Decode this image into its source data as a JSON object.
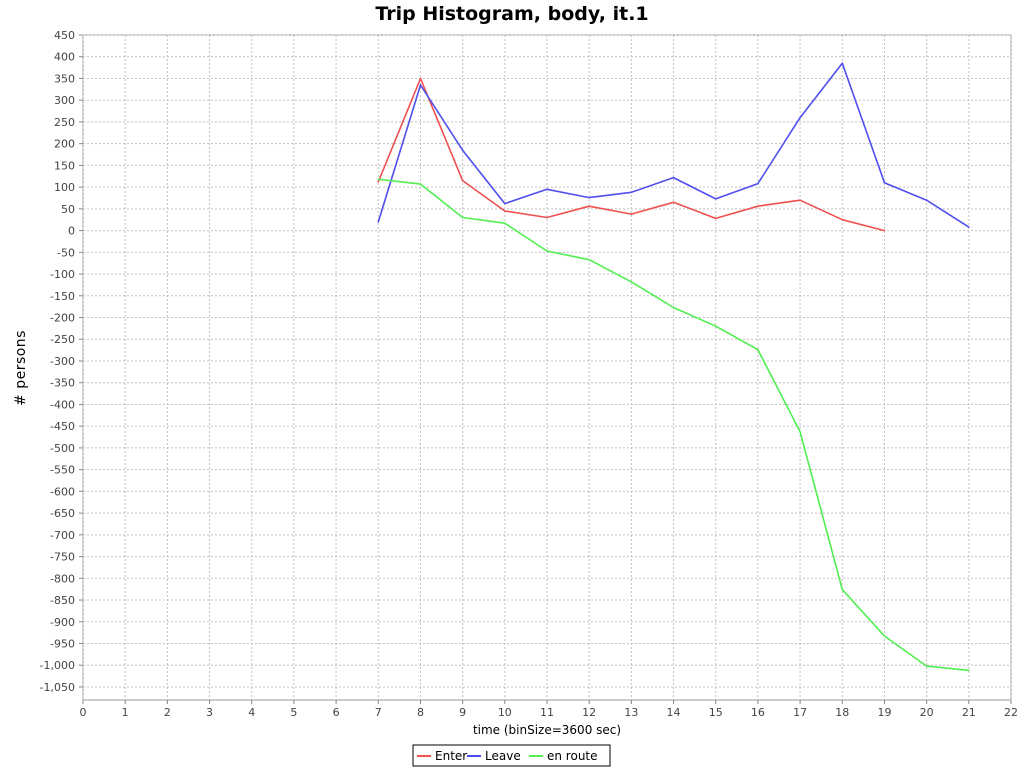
{
  "chart_data": {
    "type": "line",
    "title": "Trip Histogram, body, it.1",
    "xlabel": "time (binSize=3600 sec)",
    "ylabel": "# persons",
    "xlim": [
      0,
      22
    ],
    "ylim": [
      -1080,
      450
    ],
    "xticks": [
      0,
      1,
      2,
      3,
      4,
      5,
      6,
      7,
      8,
      9,
      10,
      11,
      12,
      13,
      14,
      15,
      16,
      17,
      18,
      19,
      20,
      21,
      22
    ],
    "yticks": [
      450,
      400,
      350,
      300,
      250,
      200,
      150,
      100,
      50,
      0,
      -50,
      -100,
      -150,
      -200,
      -250,
      -300,
      -350,
      -400,
      -450,
      -500,
      -550,
      -600,
      -650,
      -700,
      -750,
      -800,
      -850,
      -900,
      -950,
      -1000,
      -1050
    ],
    "ytick_labels": [
      "450",
      "400",
      "350",
      "300",
      "250",
      "200",
      "150",
      "100",
      "50",
      "0",
      "-50",
      "-100",
      "-150",
      "-200",
      "-250",
      "-300",
      "-350",
      "-400",
      "-450",
      "-500",
      "-550",
      "-600",
      "-650",
      "-700",
      "-750",
      "-800",
      "-850",
      "-900",
      "-950",
      "-1,000",
      "-1,050"
    ],
    "grid": true,
    "legend_position": "bottom",
    "series": [
      {
        "name": "Enter",
        "color": "#f05050",
        "x": [
          7,
          8,
          9,
          10,
          11,
          12,
          13,
          14,
          15,
          16,
          17,
          18,
          19
        ],
        "y": [
          112,
          350,
          115,
          45,
          30,
          56,
          38,
          65,
          28,
          56,
          70,
          25,
          0
        ]
      },
      {
        "name": "Leave",
        "color": "#4f4fef",
        "x": [
          7,
          8,
          9,
          10,
          11,
          12,
          13,
          14,
          15,
          16,
          17,
          18,
          19,
          20,
          21
        ],
        "y": [
          20,
          335,
          185,
          62,
          95,
          76,
          88,
          122,
          73,
          108,
          260,
          385,
          110,
          70,
          8
        ]
      },
      {
        "name": "en route",
        "color": "#50f050",
        "x": [
          7,
          8,
          9,
          10,
          11,
          12,
          13,
          14,
          15,
          16,
          17,
          18,
          19,
          20,
          21
        ],
        "y": [
          118,
          107,
          30,
          17,
          -47,
          -67,
          -118,
          -177,
          -220,
          -274,
          -463,
          -826,
          -933,
          -1002,
          -1012
        ]
      }
    ]
  }
}
